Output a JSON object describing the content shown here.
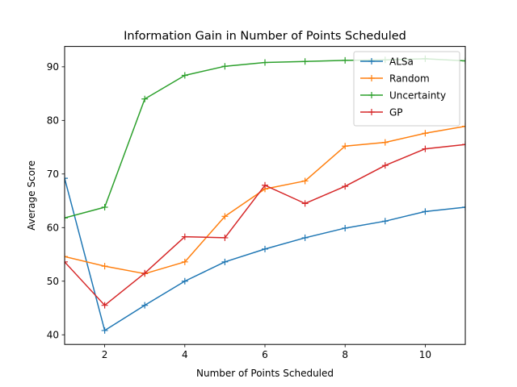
{
  "chart_data": {
    "type": "line",
    "title": "Information Gain in Number of Points Scheduled",
    "xlabel": "Number of Points Scheduled",
    "ylabel": "Average Score",
    "xlim": [
      1,
      11
    ],
    "ylim": [
      38.2,
      93.8
    ],
    "xticks": [
      2,
      4,
      6,
      8,
      10
    ],
    "yticks": [
      40,
      50,
      60,
      70,
      80,
      90
    ],
    "grid": false,
    "legend_position": "top-right",
    "marker": "+",
    "x": [
      1,
      2,
      3,
      4,
      5,
      6,
      7,
      8,
      9,
      10,
      11
    ],
    "series": [
      {
        "name": "ALSa",
        "color": "#1f77b4",
        "values": [
          69.2,
          40.8,
          45.5,
          50.0,
          53.6,
          56.0,
          58.1,
          59.9,
          61.2,
          63.0,
          63.8
        ]
      },
      {
        "name": "Random",
        "color": "#ff7f0e",
        "values": [
          54.6,
          52.8,
          51.4,
          53.6,
          62.1,
          67.2,
          68.7,
          75.2,
          75.9,
          77.6,
          78.9
        ]
      },
      {
        "name": "Uncertainty",
        "color": "#2ca02c",
        "values": [
          61.8,
          63.8,
          84.0,
          88.4,
          90.1,
          90.8,
          91.0,
          91.2,
          91.3,
          91.5,
          91.1
        ]
      },
      {
        "name": "GP",
        "color": "#d62728",
        "values": [
          53.6,
          45.5,
          51.5,
          58.3,
          58.1,
          67.9,
          64.5,
          67.7,
          71.6,
          74.7,
          75.5
        ]
      }
    ]
  }
}
